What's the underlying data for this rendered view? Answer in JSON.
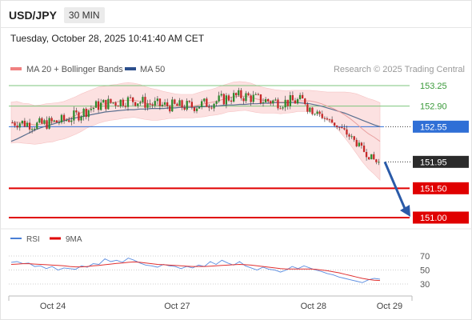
{
  "header": {
    "symbol": "USD/JPY",
    "timeframe": "30 MIN"
  },
  "timestamp": "Tuesday, October 28, 2025 10:41:40 AM CET",
  "legend": {
    "ma20": "MA 20 + Bollinger Bands",
    "ma50": "MA 50",
    "ma20_color": "#f08080",
    "ma50_color": "#2b4e8c"
  },
  "credit": "Research © 2025 Trading Central",
  "colors": {
    "up": "#2e8b2e",
    "down": "#c62828",
    "support": "#e00000",
    "resistance_green": "#7cc47c",
    "pivot_blue": "#2f6fd6",
    "arrow": "#2a5aa8"
  },
  "chart_data": {
    "type": "candlestick",
    "ylim": [
      150.8,
      153.4
    ],
    "yticks": [
      "153.25",
      "152.90",
      "152.55",
      "151.95",
      "151.50",
      "151.00"
    ],
    "levels": [
      {
        "value": 153.25,
        "label": "153.25",
        "kind": "resistance"
      },
      {
        "value": 152.9,
        "label": "152.90",
        "kind": "resistance"
      },
      {
        "value": 152.55,
        "label": "152.55",
        "kind": "pivot"
      },
      {
        "value": 151.95,
        "label": "151.95",
        "kind": "last"
      },
      {
        "value": 151.5,
        "label": "151.50",
        "kind": "support"
      },
      {
        "value": 151.0,
        "label": "151.00",
        "kind": "support"
      }
    ],
    "x_labels": [
      "Oct 24",
      "Oct 27",
      "Oct 28",
      "Oct 29"
    ],
    "x_label_positions": [
      0.11,
      0.42,
      0.76,
      0.95
    ],
    "ma20": [
      152.62,
      152.63,
      152.61,
      152.6,
      152.58,
      152.59,
      152.61,
      152.62,
      152.64,
      152.66,
      152.7,
      152.74,
      152.79,
      152.84,
      152.88,
      152.92,
      152.94,
      152.96,
      152.97,
      152.99,
      153.0,
      153.0,
      152.98,
      152.95,
      152.93,
      152.92,
      152.91,
      152.91,
      152.9,
      152.9,
      152.9,
      152.9,
      152.92,
      152.94,
      152.96,
      152.98,
      153.01,
      153.04,
      153.06,
      153.07,
      153.07,
      153.05,
      153.02,
      153.0,
      152.99,
      152.98,
      152.97,
      152.97,
      152.98,
      152.99,
      152.99,
      152.99,
      152.97,
      152.94,
      152.9,
      152.86,
      152.81,
      152.75,
      152.68,
      152.6,
      152.51,
      152.43,
      152.37,
      152.3
    ],
    "ma50": [
      152.3,
      152.34,
      152.39,
      152.44,
      152.49,
      152.53,
      152.56,
      152.59,
      152.62,
      152.65,
      152.68,
      152.7,
      152.72,
      152.74,
      152.76,
      152.78,
      152.8,
      152.81,
      152.82,
      152.83,
      152.84,
      152.84,
      152.85,
      152.85,
      152.86,
      152.86,
      152.86,
      152.87,
      152.87,
      152.88,
      152.88,
      152.88,
      152.89,
      152.89,
      152.9,
      152.9,
      152.91,
      152.92,
      152.92,
      152.93,
      152.93,
      152.94,
      152.94,
      152.95,
      152.95,
      152.96,
      152.96,
      152.96,
      152.96,
      152.96,
      152.95,
      152.94,
      152.92,
      152.9,
      152.87,
      152.84,
      152.81,
      152.78,
      152.74,
      152.7,
      152.66,
      152.62,
      152.58,
      152.55
    ],
    "band_width": [
      0.35,
      0.35,
      0.34,
      0.34,
      0.33,
      0.33,
      0.33,
      0.33,
      0.32,
      0.32,
      0.32,
      0.32,
      0.32,
      0.31,
      0.31,
      0.31,
      0.3,
      0.3,
      0.3,
      0.3,
      0.3,
      0.29,
      0.29,
      0.28,
      0.27,
      0.26,
      0.24,
      0.22,
      0.21,
      0.2,
      0.2,
      0.2,
      0.21,
      0.22,
      0.22,
      0.23,
      0.24,
      0.24,
      0.25,
      0.25,
      0.24,
      0.24,
      0.23,
      0.22,
      0.21,
      0.2,
      0.2,
      0.19,
      0.19,
      0.18,
      0.18,
      0.18,
      0.19,
      0.21,
      0.24,
      0.28,
      0.33,
      0.39,
      0.45,
      0.51,
      0.56,
      0.6,
      0.63,
      0.66
    ],
    "rsi": [
      61,
      62,
      59,
      60,
      55,
      56,
      52,
      55,
      50,
      53,
      52,
      51,
      56,
      54,
      59,
      58,
      66,
      62,
      64,
      61,
      67,
      64,
      60,
      57,
      56,
      54,
      58,
      56,
      55,
      52,
      55,
      53,
      57,
      55,
      62,
      58,
      64,
      60,
      57,
      62,
      56,
      53,
      50,
      54,
      51,
      50,
      47,
      50,
      55,
      52,
      56,
      53,
      50,
      48,
      45,
      43,
      40,
      38,
      36,
      34,
      32,
      36,
      38,
      37
    ],
    "rsi_ma": [
      58,
      58.5,
      59,
      59,
      58.5,
      58,
      57.5,
      57,
      56.5,
      56,
      55,
      54.5,
      54.5,
      55,
      56,
      56.5,
      57.5,
      58.5,
      59.5,
      60,
      61,
      61.5,
      61,
      60,
      59,
      58,
      57.5,
      57,
      56.5,
      56,
      55.5,
      55,
      55,
      55,
      55.5,
      56,
      56.5,
      57,
      57.5,
      58,
      57.5,
      57,
      56,
      55,
      54,
      53,
      52,
      51.5,
      51.5,
      51.5,
      51.5,
      51.5,
      51,
      50,
      49,
      47.5,
      46,
      44,
      42,
      40,
      38,
      36.5,
      35.5,
      35
    ],
    "rsi_ticks": [
      "70",
      "50",
      "30"
    ]
  }
}
